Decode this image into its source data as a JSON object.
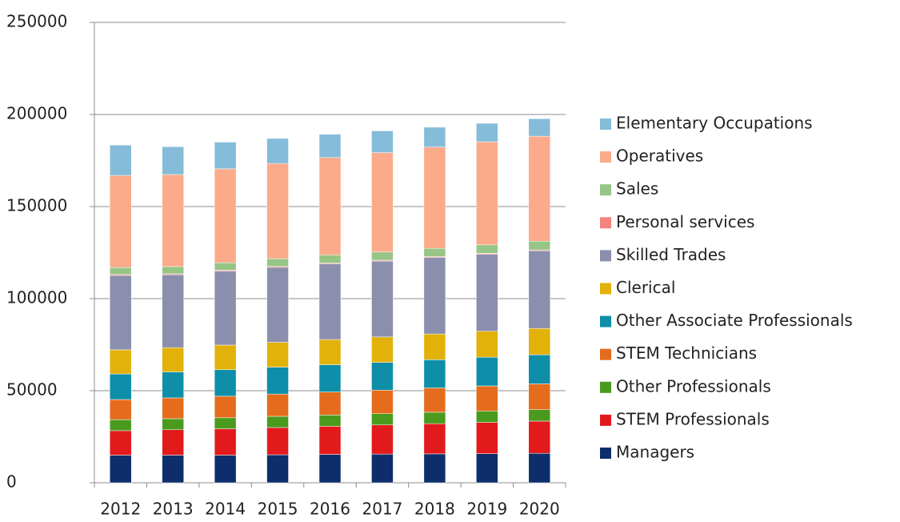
{
  "chart_data": {
    "type": "stacked_bar",
    "categories": [
      "2012",
      "2013",
      "2014",
      "2015",
      "2016",
      "2017",
      "2018",
      "2019",
      "2020"
    ],
    "series": [
      {
        "name": "Managers",
        "color": "#0d2e6b",
        "values": [
          15000,
          15000,
          15000,
          15200,
          15400,
          15600,
          15700,
          15800,
          16000
        ]
      },
      {
        "name": "STEM Professionals",
        "color": "#e31a1c",
        "values": [
          13300,
          13800,
          14300,
          14800,
          15300,
          15800,
          16400,
          17000,
          17500
        ]
      },
      {
        "name": "Other Professionals",
        "color": "#4a9a1e",
        "values": [
          6000,
          6000,
          6000,
          6100,
          6100,
          6100,
          6200,
          6200,
          6200
        ]
      },
      {
        "name": "STEM Technicians",
        "color": "#e46c1c",
        "values": [
          10900,
          11300,
          11700,
          12100,
          12500,
          12800,
          13200,
          13600,
          14000
        ]
      },
      {
        "name": "Other Associate Professionals",
        "color": "#0e8ea8",
        "values": [
          13900,
          14100,
          14400,
          14600,
          14800,
          15100,
          15300,
          15600,
          15800
        ]
      },
      {
        "name": "Clerical",
        "color": "#e2b10a",
        "values": [
          13100,
          13200,
          13400,
          13500,
          13700,
          13800,
          14000,
          14100,
          14300
        ]
      },
      {
        "name": "Skilled Trades",
        "color": "#8b8fad",
        "values": [
          40400,
          39600,
          40200,
          40700,
          41000,
          41200,
          41500,
          41800,
          42200
        ]
      },
      {
        "name": "Personal services",
        "color": "#f4837d",
        "values": [
          500,
          500,
          500,
          500,
          500,
          500,
          500,
          500,
          500
        ]
      },
      {
        "name": "Sales",
        "color": "#96c586",
        "values": [
          3800,
          3900,
          4000,
          4200,
          4300,
          4400,
          4500,
          4600,
          4700
        ]
      },
      {
        "name": "Operatives",
        "color": "#fbaa8a",
        "values": [
          50000,
          50000,
          51000,
          51700,
          53000,
          54000,
          55000,
          56000,
          57000
        ]
      },
      {
        "name": "Elementary Occupations",
        "color": "#85bcd9",
        "values": [
          16500,
          15100,
          14500,
          13600,
          12700,
          11800,
          10800,
          10000,
          9500
        ]
      }
    ],
    "ylim": [
      0,
      250000
    ],
    "yticks": [
      0,
      50000,
      100000,
      150000,
      200000,
      250000
    ],
    "grid": true,
    "legend": "right"
  }
}
